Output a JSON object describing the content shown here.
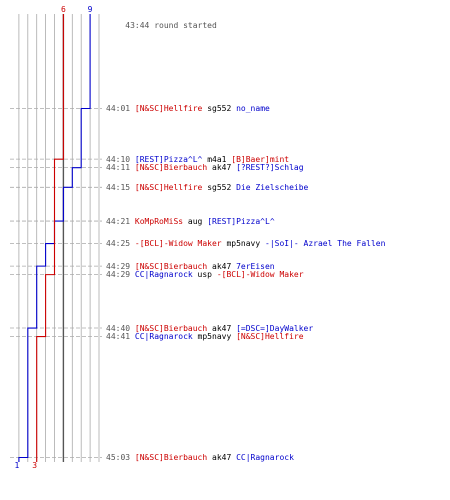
{
  "colors": {
    "team_blue": "#0000cc",
    "team_red": "#cc0000",
    "time": "#555555",
    "weapon": "#000000",
    "grid": "#aaaaaa",
    "grid_dark": "#555555",
    "dash": "#aaaaaa"
  },
  "start": {
    "time": "43:44",
    "text": "round started"
  },
  "counts": {
    "blue_start": "9",
    "red_start": "6",
    "blue_end": "1",
    "red_end": "3"
  },
  "events": [
    {
      "time": "44:01",
      "killer": "[N&SC]Hellfire",
      "killer_team": "red",
      "weapon": "sg552",
      "victim": "no_name",
      "victim_team": "blue",
      "blue_after": 8,
      "red_after": 6
    },
    {
      "time": "44:10",
      "killer": "[REST]Pizza^L^",
      "killer_team": "blue",
      "weapon": "m4a1",
      "victim": "[B]Baer]mint",
      "victim_team": "red",
      "blue_after": 8,
      "red_after": 5
    },
    {
      "time": "44:11",
      "killer": "[N&SC]Bierbauch",
      "killer_team": "red",
      "weapon": "ak47",
      "victim": "[?REST?]Schlag",
      "victim_team": "blue",
      "blue_after": 7,
      "red_after": 5
    },
    {
      "time": "44:15",
      "killer": "[N&SC]Hellfire",
      "killer_team": "red",
      "weapon": "sg552",
      "victim": "Die Zielscheibe",
      "victim_team": "blue",
      "blue_after": 6,
      "red_after": 5
    },
    {
      "time": "44:21",
      "killer": "KoMpRoMiSs",
      "killer_team": "red",
      "weapon": "aug",
      "victim": "[REST]Pizza^L^",
      "victim_team": "blue",
      "blue_after": 5,
      "red_after": 5
    },
    {
      "time": "44:25",
      "killer": "-[BCL]-Widow Maker",
      "killer_team": "red",
      "weapon": "mp5navy",
      "victim": "-|SoI|- Azrael The Fallen",
      "victim_team": "blue",
      "blue_after": 4,
      "red_after": 5
    },
    {
      "time": "44:29",
      "killer": "[N&SC]Bierbauch",
      "killer_team": "red",
      "weapon": "ak47",
      "victim": "7erEisen",
      "victim_team": "blue",
      "blue_after": 3,
      "red_after": 5
    },
    {
      "time": "44:29",
      "killer": "CC|Ragnarock",
      "killer_team": "blue",
      "weapon": "usp",
      "victim": "-[BCL]-Widow Maker",
      "victim_team": "red",
      "blue_after": 3,
      "red_after": 4
    },
    {
      "time": "44:40",
      "killer": "[N&SC]Bierbauch",
      "killer_team": "red",
      "weapon": "ak47",
      "victim": "[=DSC=]DayWalker",
      "victim_team": "blue",
      "blue_after": 2,
      "red_after": 4
    },
    {
      "time": "44:41",
      "killer": "CC|Ragnarock",
      "killer_team": "blue",
      "weapon": "mp5navy",
      "victim": "[N&SC]Hellfire",
      "victim_team": "red",
      "blue_after": 2,
      "red_after": 3
    },
    {
      "time": "45:03",
      "killer": "[N&SC]Bierbauch",
      "killer_team": "red",
      "weapon": "ak47",
      "victim": "CC|Ragnarock",
      "victim_team": "blue",
      "blue_after": 1,
      "red_after": 3
    }
  ]
}
